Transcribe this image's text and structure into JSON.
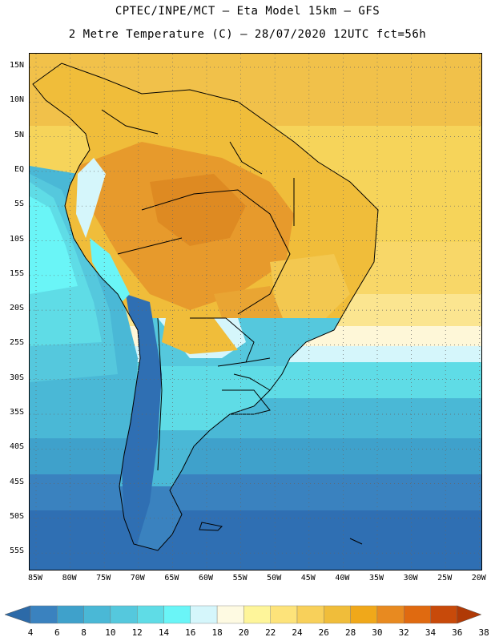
{
  "header": {
    "line1": "CPTEC/INPE/MCT –  Eta Model 15km – GFS",
    "line2": "2 Metre Temperature (C) – 28/07/2020 12UTC fct=56h"
  },
  "axes": {
    "lat_labels": [
      "15N",
      "10N",
      "5N",
      "EQ",
      "5S",
      "10S",
      "15S",
      "20S",
      "25S",
      "30S",
      "35S",
      "40S",
      "45S",
      "50S",
      "55S"
    ],
    "lon_labels": [
      "85W",
      "80W",
      "75W",
      "70W",
      "65W",
      "60W",
      "55W",
      "50W",
      "45W",
      "40W",
      "35W",
      "30W",
      "25W",
      "20W"
    ]
  },
  "colorbar": {
    "labels": [
      "4",
      "6",
      "8",
      "10",
      "12",
      "14",
      "16",
      "18",
      "20",
      "22",
      "24",
      "26",
      "28",
      "30",
      "32",
      "34",
      "36",
      "38"
    ],
    "colors": [
      "#2c6aa8",
      "#3a82bf",
      "#3fa1cb",
      "#4ab8d6",
      "#55c8dd",
      "#5fdce6",
      "#6af5f7",
      "#d5f6fb",
      "#fefae2",
      "#fef59a",
      "#fde37a",
      "#f8d05a",
      "#f0bd3a",
      "#f0a81a",
      "#e88a20",
      "#e06a10",
      "#c84a0a",
      "#b03a06"
    ]
  },
  "legend_colors": {
    "ocean_north": "#f6d45a",
    "ocean_south": "#2f6fb3",
    "land_hot": "#e79a2c"
  }
}
